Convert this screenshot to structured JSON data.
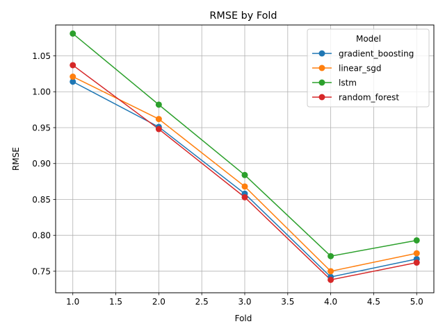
{
  "chart_data": {
    "type": "line",
    "title": "RMSE by Fold",
    "xlabel": "Fold",
    "ylabel": "RMSE",
    "xlim": [
      0.8,
      5.2
    ],
    "ylim": [
      0.72,
      1.093
    ],
    "xticks": [
      "1.0",
      "1.5",
      "2.0",
      "2.5",
      "3.0",
      "3.5",
      "4.0",
      "4.5",
      "5.0"
    ],
    "yticks": [
      "0.75",
      "0.80",
      "0.85",
      "0.90",
      "0.95",
      "1.00",
      "1.05"
    ],
    "grid": true,
    "legend_title": "Model",
    "legend_position": "top-right",
    "x": [
      1.0,
      2.0,
      3.0,
      4.0,
      5.0
    ],
    "series": [
      {
        "name": "gradient_boosting",
        "color": "#1f77b4",
        "values": [
          1.014,
          0.951,
          0.858,
          0.742,
          0.767
        ]
      },
      {
        "name": "linear_sgd",
        "color": "#ff7f0e",
        "values": [
          1.021,
          0.962,
          0.868,
          0.75,
          0.775
        ]
      },
      {
        "name": "lstm",
        "color": "#2ca02c",
        "values": [
          1.081,
          0.982,
          0.884,
          0.771,
          0.793
        ]
      },
      {
        "name": "random_forest",
        "color": "#d62728",
        "values": [
          1.037,
          0.948,
          0.853,
          0.738,
          0.762
        ]
      }
    ]
  }
}
